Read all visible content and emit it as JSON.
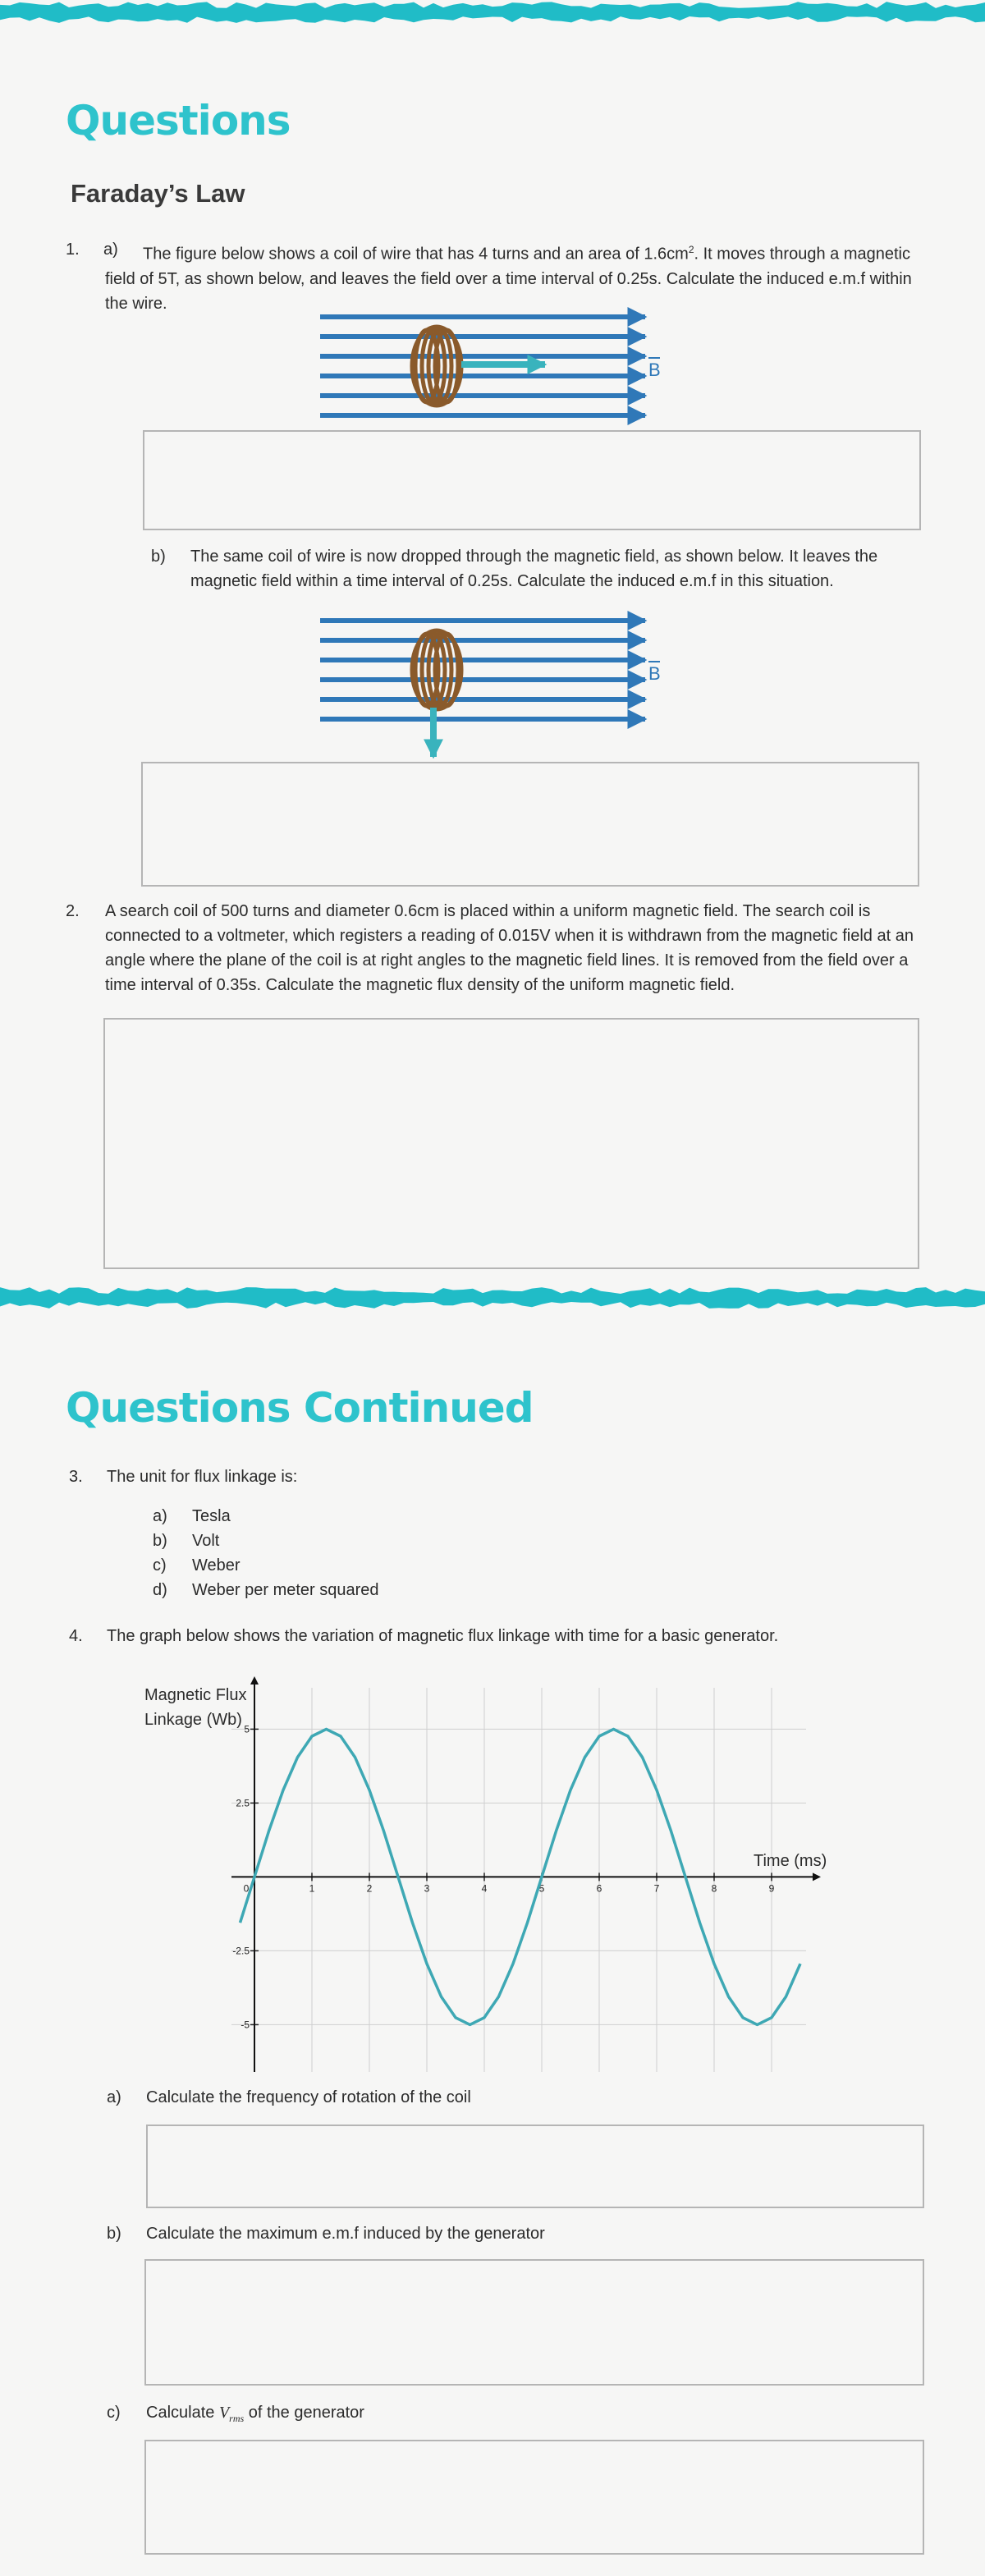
{
  "header": {
    "title": "Questions",
    "subtitle": "Faraday’s Law"
  },
  "questions": [
    {
      "number": "1.",
      "parts": [
        {
          "label": "a)",
          "text": "The figure below shows a coil of wire that has 4 turns and an area of 1.6cm",
          "superscript": "2",
          "text_after": ".  It moves through a magnetic field of 5T, as shown below, and leaves the field over a time interval of 0.25s. Calculate the induced e.m.f within the wire."
        },
        {
          "label": "b)",
          "text": "The same coil of wire is now dropped through the magnetic field, as shown below. It leaves the magnetic field within a time interval of 0.25s. Calculate the induced e.m.f in this situation."
        }
      ]
    },
    {
      "number": "2.",
      "text": "A search coil of 500 turns and diameter 0.6cm is placed within a uniform magnetic field. The search coil is connected to a voltmeter, which registers a reading of 0.015V when it is withdrawn from the magnetic field at an angle where the plane of the coil is at right angles to the magnetic field lines. It is removed from the field over a time interval of 0.35s. Calculate the magnetic flux density of the uniform magnetic field."
    }
  ],
  "diagram_label": "B",
  "continued": {
    "title": "Questions Continued",
    "questions": [
      {
        "number": "3.",
        "text": "The unit for flux linkage is:",
        "options": [
          {
            "label": "a)",
            "text": "Tesla"
          },
          {
            "label": "b)",
            "text": "Volt"
          },
          {
            "label": "c)",
            "text": "Weber"
          },
          {
            "label": "d)",
            "text": "Weber per meter squared"
          }
        ]
      },
      {
        "number": "4.",
        "text": "The graph below shows the variation of magnetic flux linkage with time for a basic generator.",
        "parts": [
          {
            "label": "a)",
            "text": "Calculate the frequency of rotation of the coil"
          },
          {
            "label": "b)",
            "text": "Calculate the maximum e.m.f induced by the generator"
          },
          {
            "label": "c)",
            "text": "Calculate ",
            "variable": "V",
            "subscript": "rms",
            "text_after": " of the generator"
          }
        ]
      }
    ]
  },
  "chart_data": {
    "type": "line",
    "y_label": "Magnetic Flux Linkage (Wb)",
    "x_label": "Time (ms)",
    "x": [
      -0.25,
      0,
      0.25,
      0.5,
      0.75,
      1,
      1.25,
      1.5,
      1.75,
      2,
      2.25,
      2.5,
      2.75,
      3,
      3.25,
      3.5,
      3.75,
      4,
      4.25,
      4.5,
      4.75,
      5,
      5.25,
      5.5,
      5.75,
      6,
      6.25,
      6.5,
      6.75,
      7,
      7.25,
      7.5,
      7.75,
      8,
      8.25,
      8.5,
      8.75,
      9,
      9.25,
      9.5
    ],
    "values": [
      -1.55,
      0,
      1.55,
      2.94,
      4.05,
      4.76,
      5,
      4.76,
      4.05,
      2.94,
      1.55,
      0,
      -1.55,
      -2.94,
      -4.05,
      -4.76,
      -5,
      -4.76,
      -4.05,
      -2.94,
      -1.55,
      0,
      1.55,
      2.94,
      4.05,
      4.76,
      5,
      4.76,
      4.05,
      2.94,
      1.55,
      0,
      -1.55,
      -2.94,
      -4.05,
      -4.76,
      -5,
      -4.76,
      -4.05,
      -2.94
    ],
    "color": "#3ea8b4",
    "xlim": [
      -0.4,
      9.6
    ],
    "ylim": [
      -6.6,
      6.4
    ],
    "xticks": [
      0,
      1,
      2,
      3,
      4,
      5,
      6,
      7,
      8,
      9
    ],
    "yticks": [
      -5,
      -2.5,
      2.5,
      5
    ],
    "grid": true
  }
}
